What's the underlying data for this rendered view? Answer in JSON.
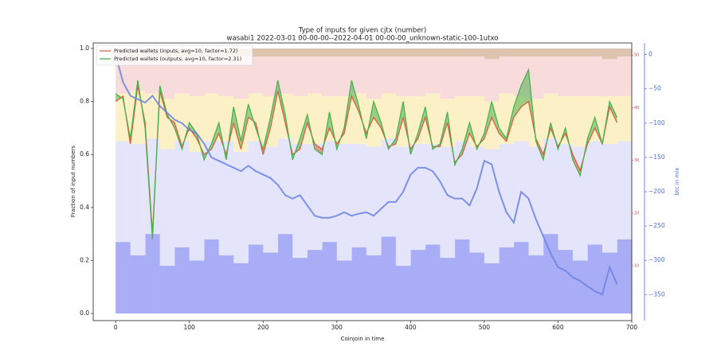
{
  "chart_data": {
    "type": "line",
    "title": "Type of inputs for given cjtx (number)",
    "subtitle": "wasabi1 2022-03-01 00-00-00--2022-04-01 00-00-00_unknown-static-100-1utxo",
    "xlabel": "Coinjoin in time",
    "ylabel": "Fraction of input numbers",
    "y2label": "btc in mix",
    "legend": "upper left",
    "xlim": [
      -30.4,
      700
    ],
    "xticks": [
      0,
      100,
      200,
      300,
      400,
      500,
      600,
      700
    ],
    "ylim": [
      -0.027,
      1.021
    ],
    "yticks": [
      {
        "value": 0,
        "label": "0.0"
      },
      0.2,
      0.4,
      0.6,
      0.8,
      {
        "value": 1,
        "label": "1.0"
      }
    ],
    "y2lim": [
      -388,
      17
    ],
    "y2ticks": [
      0,
      {
        "value": -50,
        "label": "−50"
      },
      {
        "value": -100,
        "label": "−100"
      },
      {
        "value": -150,
        "label": "−150"
      },
      {
        "value": -200,
        "label": "−200"
      },
      {
        "value": -250,
        "label": "−250"
      },
      {
        "value": -300,
        "label": "−300"
      },
      {
        "value": -350,
        "label": "−350"
      }
    ],
    "y2color": "#4a6fd1",
    "y3lim": [
      -0.4,
      52.3
    ],
    "y3ticks": [
      10,
      20,
      30,
      40,
      50
    ],
    "y3color": "#e0413a",
    "stack": {
      "x": [
        0,
        20,
        40,
        60,
        80,
        100,
        120,
        140,
        160,
        180,
        200,
        220,
        240,
        260,
        280,
        300,
        320,
        340,
        360,
        380,
        400,
        420,
        440,
        460,
        480,
        500,
        520,
        540,
        560,
        580,
        600,
        620,
        640,
        660,
        680
      ],
      "width": 20,
      "layers": [
        {
          "color": "#a9adf5",
          "values": [
            0.27,
            0.22,
            0.3,
            0.18,
            0.25,
            0.2,
            0.28,
            0.22,
            0.19,
            0.26,
            0.23,
            0.3,
            0.21,
            0.24,
            0.27,
            0.2,
            0.25,
            0.22,
            0.29,
            0.18,
            0.24,
            0.26,
            0.21,
            0.28,
            0.23,
            0.19,
            0.25,
            0.27,
            0.22,
            0.3,
            0.24,
            0.2,
            0.26,
            0.23,
            0.28
          ]
        },
        {
          "color": "#e4e5fb",
          "values": [
            0.38,
            0.42,
            0.36,
            0.44,
            0.4,
            0.41,
            0.37,
            0.43,
            0.42,
            0.39,
            0.4,
            0.36,
            0.43,
            0.4,
            0.38,
            0.44,
            0.39,
            0.41,
            0.37,
            0.45,
            0.4,
            0.38,
            0.42,
            0.37,
            0.4,
            0.43,
            0.39,
            0.38,
            0.41,
            0.36,
            0.4,
            0.43,
            0.39,
            0.41,
            0.37
          ]
        },
        {
          "color": "#fcf1c6",
          "values": [
            0.18,
            0.2,
            0.17,
            0.19,
            0.18,
            0.21,
            0.18,
            0.17,
            0.2,
            0.18,
            0.19,
            0.17,
            0.18,
            0.19,
            0.17,
            0.18,
            0.19,
            0.18,
            0.17,
            0.19,
            0.18,
            0.19,
            0.18,
            0.17,
            0.19,
            0.18,
            0.19,
            0.17,
            0.18,
            0.17,
            0.18,
            0.19,
            0.17,
            0.18,
            0.17
          ]
        },
        {
          "color": "#f8dcdc",
          "values": [
            0.14,
            0.13,
            0.14,
            0.16,
            0.14,
            0.15,
            0.14,
            0.15,
            0.16,
            0.14,
            0.15,
            0.14,
            0.15,
            0.14,
            0.15,
            0.15,
            0.14,
            0.16,
            0.14,
            0.15,
            0.15,
            0.14,
            0.16,
            0.15,
            0.15,
            0.16,
            0.14,
            0.15,
            0.16,
            0.14,
            0.15,
            0.15,
            0.15,
            0.14,
            0.15
          ]
        },
        {
          "color": "#dcc4ae",
          "values": [
            0.03,
            0.03,
            0.03,
            0.03,
            0.03,
            0.03,
            0.03,
            0.03,
            0.03,
            0.03,
            0.03,
            0.03,
            0.03,
            0.03,
            0.03,
            0.03,
            0.03,
            0.03,
            0.03,
            0.03,
            0.03,
            0.03,
            0.03,
            0.03,
            0.03,
            0.04,
            0.03,
            0.03,
            0.03,
            0.03,
            0.03,
            0.03,
            0.03,
            0.04,
            0.03
          ]
        }
      ]
    },
    "x": [
      0,
      10,
      20,
      30,
      40,
      50,
      60,
      70,
      80,
      90,
      100,
      110,
      120,
      130,
      140,
      150,
      160,
      170,
      180,
      190,
      200,
      210,
      220,
      230,
      240,
      250,
      260,
      270,
      280,
      290,
      300,
      310,
      320,
      330,
      340,
      350,
      360,
      370,
      380,
      390,
      400,
      410,
      420,
      430,
      440,
      450,
      460,
      470,
      480,
      490,
      500,
      510,
      520,
      530,
      540,
      550,
      560,
      570,
      580,
      590,
      600,
      610,
      620,
      630,
      640,
      650,
      660,
      670,
      680
    ],
    "series": [
      {
        "name": "Predicted wallets (inputs, avg=10, factor=1.72)",
        "color": "#d9603b",
        "values": [
          0.8,
          0.82,
          0.64,
          0.86,
          0.72,
          0.3,
          0.84,
          0.74,
          0.72,
          0.63,
          0.7,
          0.66,
          0.6,
          0.62,
          0.68,
          0.6,
          0.72,
          0.62,
          0.74,
          0.72,
          0.6,
          0.7,
          0.84,
          0.72,
          0.6,
          0.62,
          0.72,
          0.64,
          0.62,
          0.7,
          0.64,
          0.68,
          0.82,
          0.76,
          0.68,
          0.74,
          0.7,
          0.63,
          0.64,
          0.74,
          0.62,
          0.66,
          0.74,
          0.63,
          0.63,
          0.72,
          0.57,
          0.6,
          0.68,
          0.63,
          0.66,
          0.74,
          0.68,
          0.65,
          0.74,
          0.78,
          0.8,
          0.66,
          0.6,
          0.7,
          0.63,
          0.68,
          0.6,
          0.54,
          0.64,
          0.7,
          0.64,
          0.78,
          0.72
        ]
      },
      {
        "name": "Predicted wallets (outputs, avg=10, factor=2.31)",
        "color": "#4caf50",
        "values": [
          0.83,
          0.81,
          0.66,
          0.88,
          0.7,
          0.28,
          0.86,
          0.75,
          0.7,
          0.62,
          0.72,
          0.68,
          0.58,
          0.64,
          0.72,
          0.58,
          0.78,
          0.65,
          0.79,
          0.7,
          0.62,
          0.74,
          0.88,
          0.75,
          0.58,
          0.66,
          0.75,
          0.62,
          0.6,
          0.76,
          0.62,
          0.7,
          0.88,
          0.78,
          0.66,
          0.8,
          0.72,
          0.62,
          0.66,
          0.8,
          0.6,
          0.68,
          0.78,
          0.62,
          0.64,
          0.76,
          0.56,
          0.62,
          0.72,
          0.62,
          0.68,
          0.8,
          0.7,
          0.66,
          0.78,
          0.86,
          0.92,
          0.65,
          0.58,
          0.72,
          0.62,
          0.7,
          0.58,
          0.52,
          0.66,
          0.74,
          0.64,
          0.8,
          0.74
        ]
      },
      {
        "axis": "y2",
        "color": "#6a82e0",
        "values": [
          0,
          -40,
          -60,
          -65,
          -70,
          -60,
          -75,
          -85,
          -95,
          -100,
          -110,
          -115,
          -130,
          -150,
          -155,
          -160,
          -165,
          -170,
          -162,
          -170,
          -175,
          -180,
          -190,
          -205,
          -210,
          -205,
          -220,
          -235,
          -238,
          -238,
          -235,
          -230,
          -235,
          -232,
          -230,
          -235,
          -225,
          -215,
          -215,
          -200,
          -175,
          -165,
          -165,
          -170,
          -185,
          -205,
          -210,
          -210,
          -220,
          -195,
          -155,
          -160,
          -200,
          -230,
          -245,
          -200,
          -210,
          -240,
          -265,
          -290,
          -310,
          -315,
          -325,
          -330,
          -338,
          -345,
          -350,
          -310,
          -335
        ]
      }
    ]
  }
}
